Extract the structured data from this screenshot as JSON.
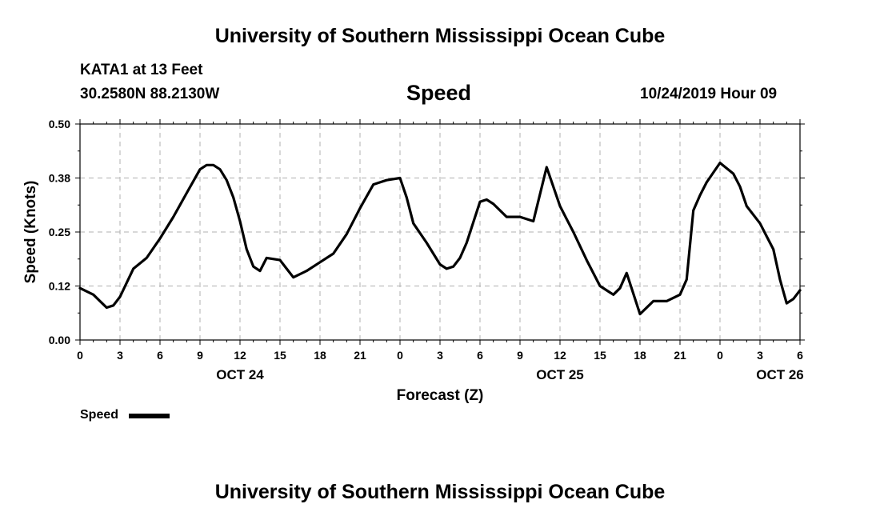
{
  "page": {
    "title_top": "University of Southern Mississippi Ocean Cube",
    "title_bottom": "University of Southern Mississippi Ocean Cube",
    "station": "KATA1 at 13 Feet",
    "coords": "30.2580N 88.2130W",
    "timestamp": "10/24/2019 Hour 09"
  },
  "chart_data": {
    "type": "line",
    "title": "Speed",
    "xlabel": "Forecast (Z)",
    "ylabel": "Speed (Knots)",
    "ylim": [
      0,
      0.5
    ],
    "yticks": [
      "0.00",
      "0.12",
      "0.25",
      "0.38",
      "0.50"
    ],
    "xlim": [
      0,
      54
    ],
    "xticks": [
      "0",
      "3",
      "6",
      "9",
      "12",
      "15",
      "18",
      "21",
      "0",
      "3",
      "6",
      "9",
      "12",
      "15",
      "18",
      "21",
      "0",
      "3",
      "6"
    ],
    "day_labels": [
      {
        "label": "OCT 24",
        "at": 12
      },
      {
        "label": "OCT 25",
        "at": 36
      },
      {
        "label": "OCT 26",
        "at": 52.5
      }
    ],
    "grid": true,
    "legend_position": "bottom-left",
    "series": [
      {
        "name": "Speed",
        "color": "#000000",
        "x": [
          0,
          1,
          2,
          2.5,
          3,
          4,
          5,
          6,
          7,
          8,
          9,
          9.5,
          10,
          10.5,
          11,
          11.5,
          12,
          12.5,
          13,
          13.5,
          14,
          15,
          15.5,
          16,
          17,
          18,
          19,
          20,
          21,
          22,
          22.5,
          23,
          24,
          24.5,
          25,
          26,
          27,
          27.5,
          28,
          28.5,
          29,
          30,
          30.5,
          31,
          32,
          33,
          34,
          35,
          36,
          36.5,
          37,
          38,
          39,
          40,
          40.5,
          41,
          42,
          43,
          43.5,
          44,
          45,
          45.5,
          46,
          46.5,
          47,
          48,
          49,
          49.5,
          50,
          51,
          51.5,
          52,
          52.5,
          53,
          53.5,
          54
        ],
        "values": [
          0.12,
          0.105,
          0.075,
          0.08,
          0.1,
          0.165,
          0.19,
          0.235,
          0.285,
          0.34,
          0.395,
          0.405,
          0.405,
          0.395,
          0.37,
          0.33,
          0.275,
          0.21,
          0.17,
          0.16,
          0.19,
          0.185,
          0.165,
          0.145,
          0.16,
          0.18,
          0.2,
          0.245,
          0.305,
          0.36,
          0.365,
          0.37,
          0.375,
          0.33,
          0.27,
          0.225,
          0.175,
          0.165,
          0.17,
          0.19,
          0.225,
          0.32,
          0.325,
          0.315,
          0.285,
          0.285,
          0.275,
          0.4,
          0.31,
          0.28,
          0.25,
          0.185,
          0.125,
          0.105,
          0.12,
          0.155,
          0.06,
          0.09,
          0.09,
          0.09,
          0.105,
          0.14,
          0.3,
          0.335,
          0.365,
          0.41,
          0.385,
          0.355,
          0.31,
          0.27,
          0.24,
          0.21,
          0.14,
          0.085,
          0.095,
          0.115
        ]
      }
    ]
  }
}
